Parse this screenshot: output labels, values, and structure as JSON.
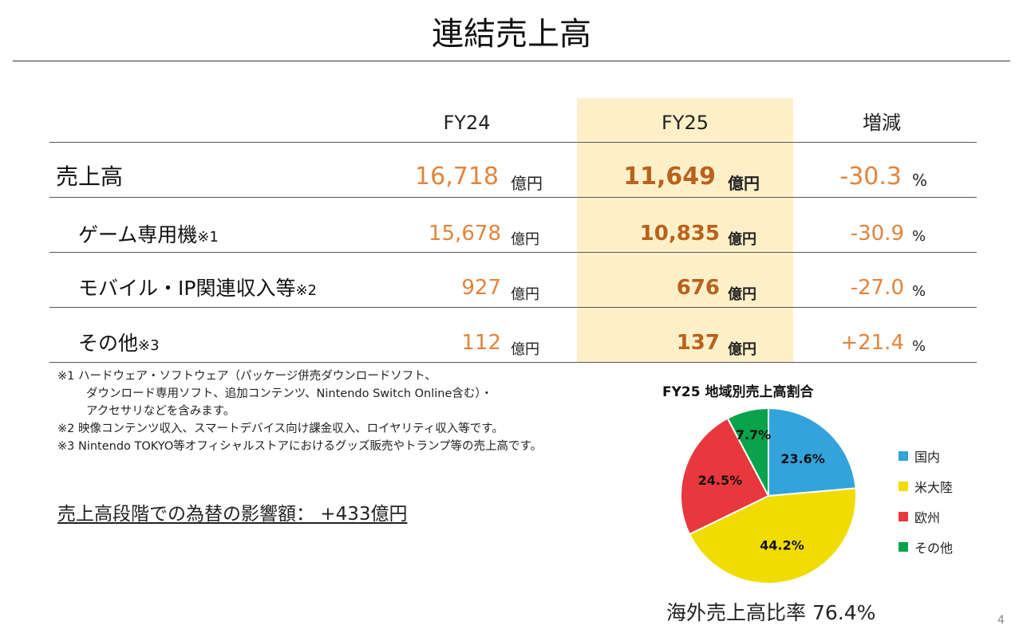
{
  "title": "連結売上高",
  "table": {
    "headers": {
      "fy24": "FY24",
      "fy25": "FY25",
      "change": "増減"
    },
    "rows": [
      {
        "label": "売上高",
        "note": "",
        "fy24": "16,718",
        "fy24_unit": "億円",
        "fy25": "11,649",
        "fy25_unit": "億円",
        "change": "-30.3",
        "change_unit": "%"
      },
      {
        "label": "ゲーム専用機",
        "note": "※1",
        "fy24": "15,678",
        "fy24_unit": "億円",
        "fy25": "10,835",
        "fy25_unit": "億円",
        "change": "-30.9",
        "change_unit": "%"
      },
      {
        "label": "モバイル・IP関連収入等",
        "note": "※2",
        "fy24": "927",
        "fy24_unit": "億円",
        "fy25": "676",
        "fy25_unit": "億円",
        "change": "-27.0",
        "change_unit": "%"
      },
      {
        "label": "その他",
        "note": "※3",
        "fy24": "112",
        "fy24_unit": "億円",
        "fy25": "137",
        "fy25_unit": "億円",
        "change": "+21.4",
        "change_unit": "%"
      }
    ]
  },
  "notes": [
    "※1 ハードウェア・ソフトウェア（パッケージ併売ダウンロードソフト、",
    "ダウンロード専用ソフト、追加コンテンツ、Nintendo Switch Online含む）・",
    "アクセサリなどを含みます。",
    "※2 映像コンテンツ収入、スマートデバイス向け課金収入、ロイヤリティ収入等です。",
    "※3 Nintendo TOKYO等オフィシャルストアにおけるグッズ販売やトランプ等の売上高です。"
  ],
  "fx_impact": "売上高段階での為替の影響額：  +433億円",
  "chart_data": {
    "type": "pie",
    "title": "FY25 地域別売上高割合",
    "slices": [
      {
        "name": "国内",
        "value": 23.6,
        "label": "23.6%",
        "color": "#33a3dc"
      },
      {
        "name": "米大陸",
        "value": 44.2,
        "label": "44.2%",
        "color": "#f0dc00"
      },
      {
        "name": "欧州",
        "value": 24.5,
        "label": "24.5%",
        "color": "#e8383d"
      },
      {
        "name": "その他",
        "value": 7.7,
        "label": "7.7%",
        "color": "#0aa24a"
      }
    ],
    "start": "12 o'clock",
    "direction": "clockwise",
    "legend": "right"
  },
  "overseas_ratio": "海外売上高比率 76.4%",
  "page_number": "4"
}
